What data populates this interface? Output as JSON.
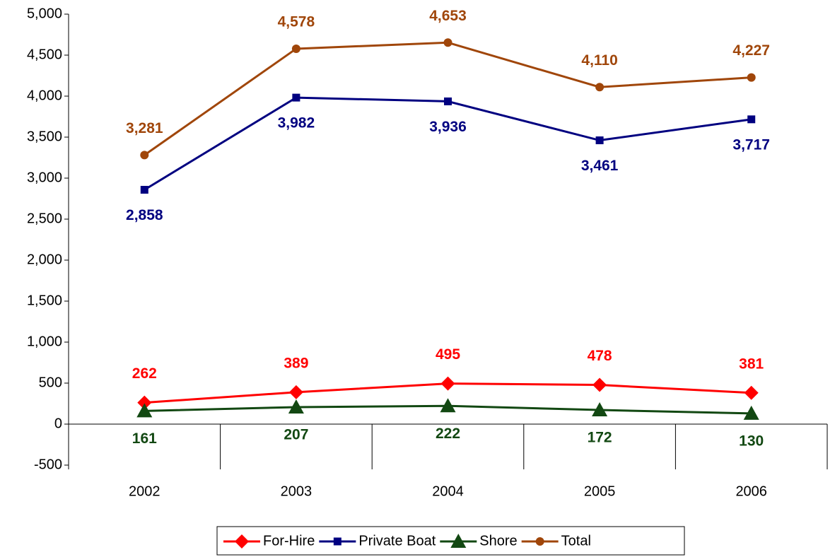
{
  "chart_data": {
    "type": "line",
    "categories": [
      "2002",
      "2003",
      "2004",
      "2005",
      "2006"
    ],
    "series": [
      {
        "name": "For-Hire",
        "color": "#ff0000",
        "values": [
          262,
          389,
          495,
          478,
          381
        ],
        "value_labels": [
          "262",
          "389",
          "495",
          "478",
          "381"
        ]
      },
      {
        "name": "Private Boat",
        "color": "#000080",
        "values": [
          2858,
          3982,
          3936,
          3461,
          3717
        ],
        "value_labels": [
          "2,858",
          "3,982",
          "3,936",
          "3,461",
          "3,717"
        ]
      },
      {
        "name": "Shore",
        "color": "#124812",
        "values": [
          161,
          207,
          222,
          172,
          130
        ],
        "value_labels": [
          "161",
          "207",
          "222",
          "172",
          "130"
        ]
      },
      {
        "name": "Total",
        "color": "#a0460a",
        "values": [
          3281,
          4578,
          4653,
          4110,
          4227
        ],
        "value_labels": [
          "3,281",
          "4,578",
          "4,653",
          "4,110",
          "4,227"
        ]
      }
    ],
    "ylim": [
      -500,
      5000
    ],
    "yticks": [
      -500,
      0,
      500,
      {
        "value": 1000,
        "label": "1,000"
      },
      {
        "value": 1500,
        "label": "1,500"
      },
      {
        "value": 2000,
        "label": "2,000"
      },
      {
        "value": 2500,
        "label": "2,500"
      },
      {
        "value": 3000,
        "label": "3,000"
      },
      {
        "value": 3500,
        "label": "3,500"
      },
      {
        "value": 4000,
        "label": "4,000"
      },
      {
        "value": 4500,
        "label": "4,500"
      },
      {
        "value": 5000,
        "label": "5,000"
      }
    ],
    "grid": false
  }
}
